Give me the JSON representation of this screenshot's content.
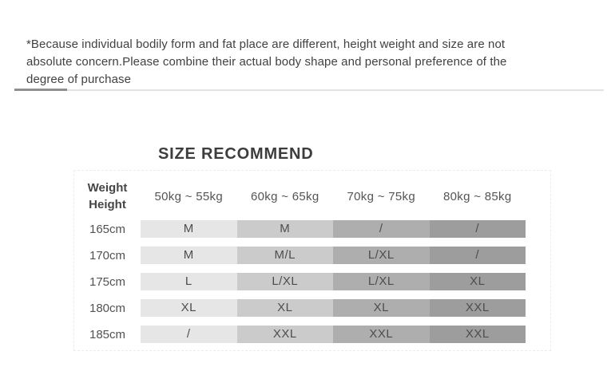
{
  "note": {
    "text": "*Because individual bodily form and fat place are different, height weight and size are not absolute concern.Please combine their actual body shape and personal preference of the degree of purchase"
  },
  "section_title": "SIZE RECOMMEND",
  "table": {
    "corner": {
      "line1": "Weight",
      "line2": "Height"
    },
    "weight_headers": [
      "50kg ~ 55kg",
      "60kg ~ 65kg",
      "70kg ~ 75kg",
      "80kg ~ 85kg"
    ],
    "rows": [
      {
        "height": "165cm",
        "sizes": [
          "M",
          "M",
          "/",
          "/"
        ]
      },
      {
        "height": "170cm",
        "sizes": [
          "M",
          "M/L",
          "L/XL",
          "/"
        ]
      },
      {
        "height": "175cm",
        "sizes": [
          "L",
          "L/XL",
          "L/XL",
          "XL"
        ]
      },
      {
        "height": "180cm",
        "sizes": [
          "XL",
          "XL",
          "XL",
          "XXL"
        ]
      },
      {
        "height": "185cm",
        "sizes": [
          "/",
          "XXL",
          "XXL",
          "XXL"
        ]
      }
    ],
    "column_colors": [
      "#e6e6e6",
      "#cbcbcb",
      "#aeaeae",
      "#9d9d9d"
    ]
  },
  "colors": {
    "background": "#ffffff",
    "note_text": "#414141",
    "divider_dark": "#8f8f8f",
    "divider_light": "#e3e3e3",
    "table_border": "#ececec",
    "cell_text": "#4d4d4d"
  },
  "chart_data": {
    "type": "table",
    "title": "SIZE RECOMMEND",
    "column_header_label": "Weight",
    "row_header_label": "Height",
    "columns": [
      "50kg ~ 55kg",
      "60kg ~ 65kg",
      "70kg ~ 75kg",
      "80kg ~ 85kg"
    ],
    "rows": [
      "165cm",
      "170cm",
      "175cm",
      "180cm",
      "185cm"
    ],
    "values": [
      [
        "M",
        "M",
        "/",
        "/"
      ],
      [
        "M",
        "M/L",
        "L/XL",
        "/"
      ],
      [
        "L",
        "L/XL",
        "L/XL",
        "XL"
      ],
      [
        "XL",
        "XL",
        "XL",
        "XXL"
      ],
      [
        "/",
        "XXL",
        "XXL",
        "XXL"
      ]
    ],
    "notes": "Shading darkens from left (lightest, 50kg ~ 55kg) to right (darkest, 80kg ~ 85kg); '/' means no recommendation"
  }
}
